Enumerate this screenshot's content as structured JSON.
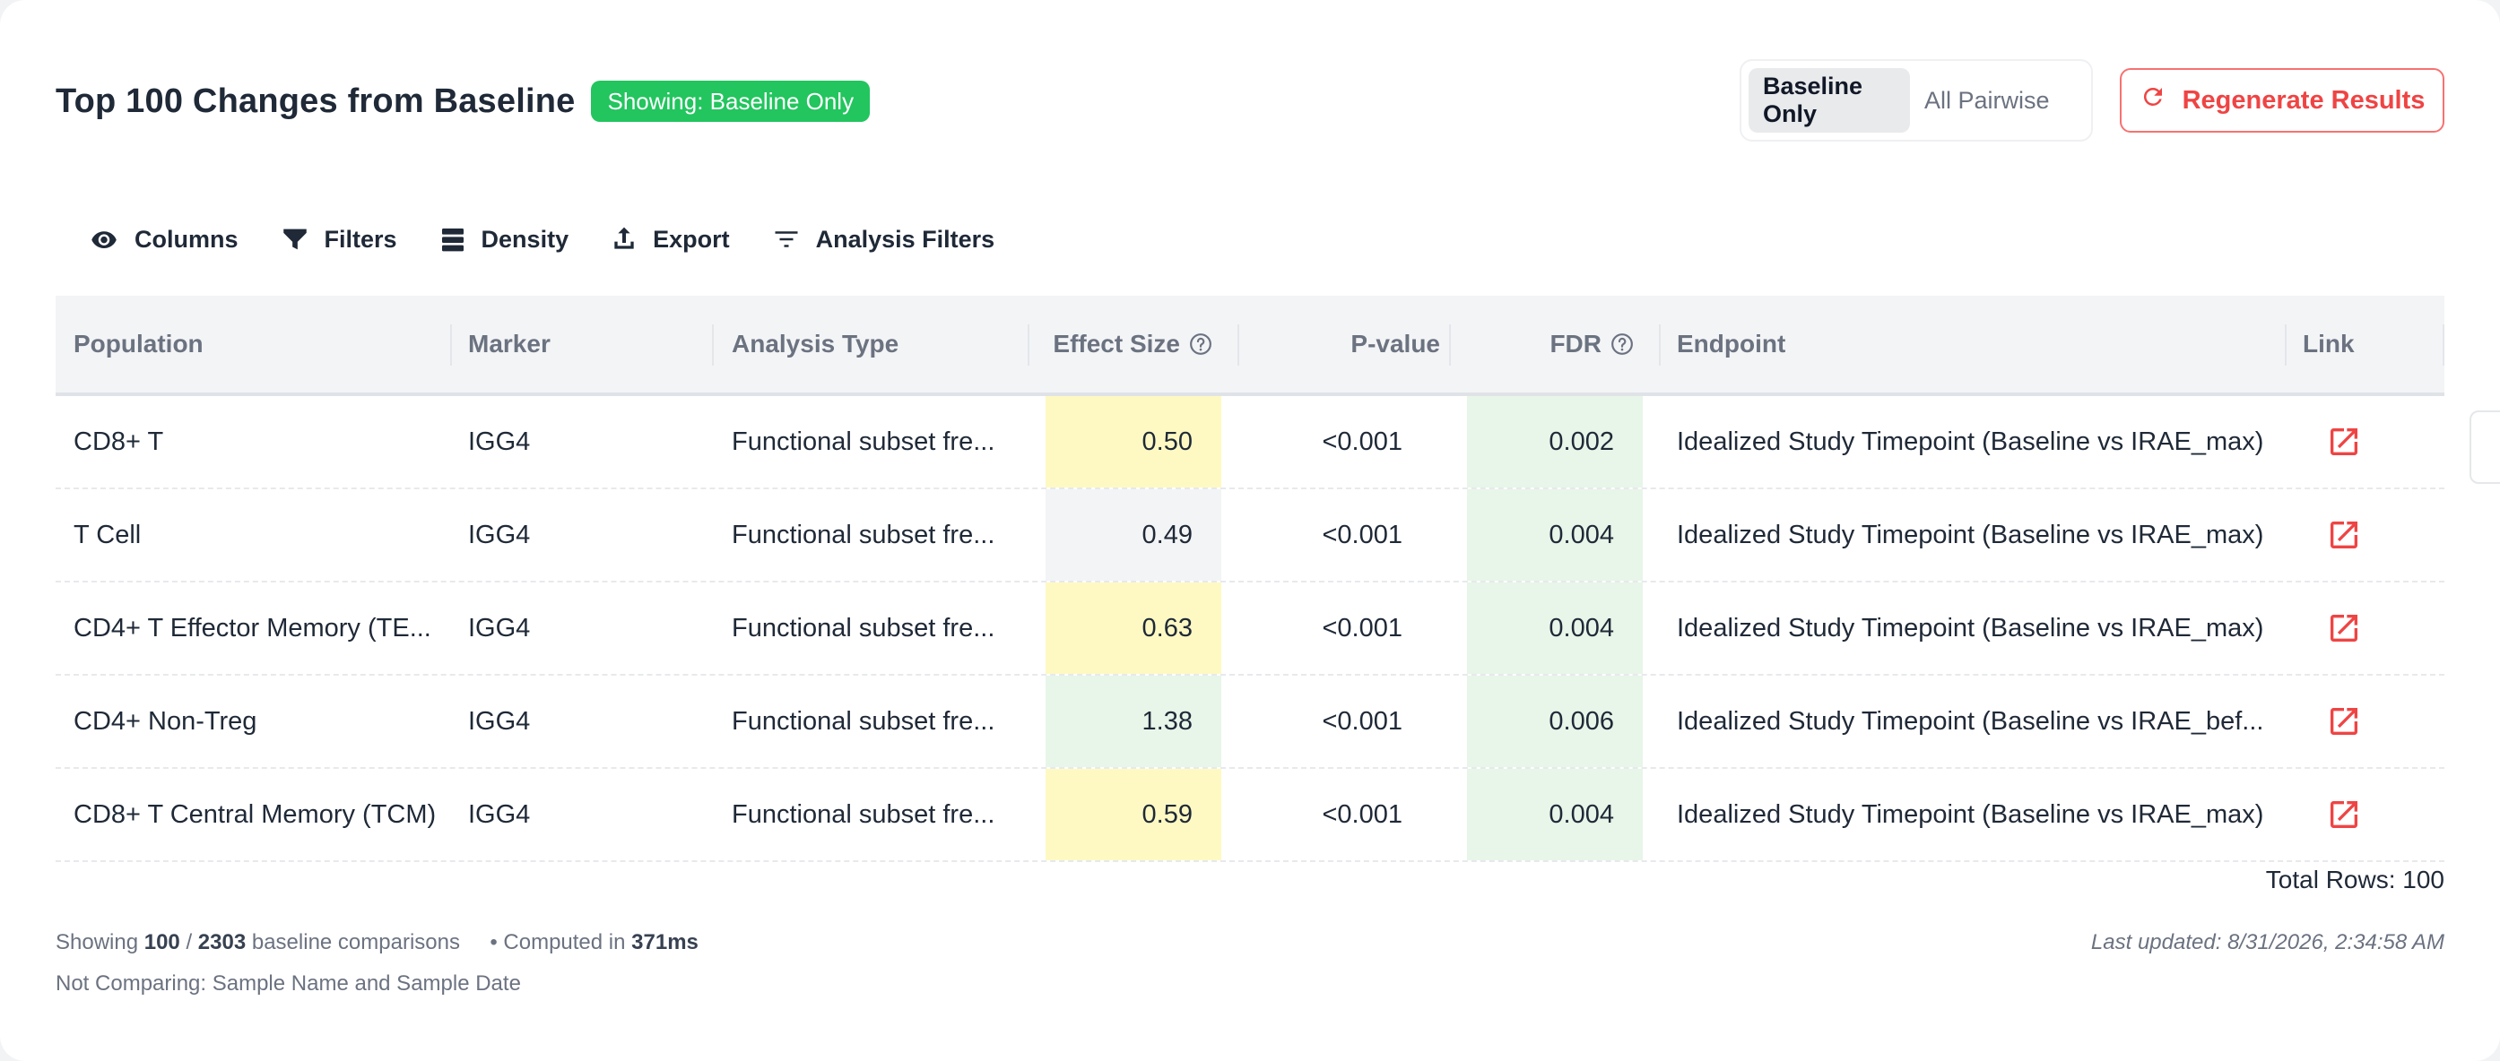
{
  "header": {
    "title": "Top 100 Changes from Baseline",
    "badge": "Showing: Baseline Only",
    "toggle": {
      "active": "Baseline Only",
      "inactive": "All Pairwise"
    },
    "regenerate": "Regenerate Results"
  },
  "toolbar": {
    "columns": "Columns",
    "filters": "Filters",
    "density": "Density",
    "export": "Export",
    "analysis_filters": "Analysis Filters"
  },
  "table": {
    "headers": {
      "population": "Population",
      "marker": "Marker",
      "analysis_type": "Analysis Type",
      "effect_size": "Effect Size",
      "pvalue": "P-value",
      "fdr": "FDR",
      "endpoint": "Endpoint",
      "link": "Link"
    },
    "rows": [
      {
        "population": "CD8+ T",
        "marker": "IGG4",
        "analysis_type": "Functional subset fre...",
        "effect_size": "0.50",
        "pvalue": "<0.001",
        "fdr": "0.002",
        "endpoint": "Idealized Study Timepoint (Baseline vs IRAE_max)",
        "effect_color": "yellow"
      },
      {
        "population": "T Cell",
        "marker": "IGG4",
        "analysis_type": "Functional subset fre...",
        "effect_size": "0.49",
        "pvalue": "<0.001",
        "fdr": "0.004",
        "endpoint": "Idealized Study Timepoint (Baseline vs IRAE_max)",
        "effect_color": "gray"
      },
      {
        "population": "CD4+ T Effector Memory (TE...",
        "marker": "IGG4",
        "analysis_type": "Functional subset fre...",
        "effect_size": "0.63",
        "pvalue": "<0.001",
        "fdr": "0.004",
        "endpoint": "Idealized Study Timepoint (Baseline vs IRAE_max)",
        "effect_color": "yellow"
      },
      {
        "population": "CD4+ Non-Treg",
        "marker": "IGG4",
        "analysis_type": "Functional subset fre...",
        "effect_size": "1.38",
        "pvalue": "<0.001",
        "fdr": "0.006",
        "endpoint": "Idealized Study Timepoint (Baseline vs IRAE_bef...",
        "effect_color": "green"
      },
      {
        "population": "CD8+ T Central Memory (TCM)",
        "marker": "IGG4",
        "analysis_type": "Functional subset fre...",
        "effect_size": "0.59",
        "pvalue": "<0.001",
        "fdr": "0.004",
        "endpoint": "Idealized Study Timepoint (Baseline vs IRAE_max)",
        "effect_color": "yellow"
      }
    ],
    "total_rows": "Total Rows: 100"
  },
  "footer": {
    "showing_prefix": "Showing",
    "showing_count": "100",
    "showing_sep": "/",
    "showing_total": "2303",
    "showing_suffix": "baseline comparisons",
    "computed_prefix": "• Computed in",
    "computed_time": "371ms",
    "not_comparing": "Not Comparing: Sample Name and Sample Date",
    "last_updated": "Last updated: 8/31/2026, 2:34:58 AM"
  },
  "colors": {
    "accent_green": "#22c55e",
    "accent_red": "#ef4444",
    "cell_yellow": "#fef9c3",
    "cell_green": "#e8f5e9",
    "cell_gray": "#f3f4f6"
  }
}
